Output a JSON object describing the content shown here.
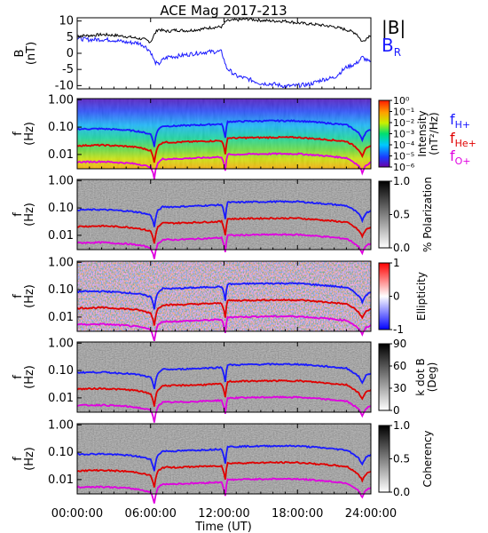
{
  "title": "ACE Mag 2017-213",
  "time_axis": {
    "ticks": [
      "00:00:00",
      "06:00:00",
      "12:00:00",
      "18:00:00",
      "24:00:00"
    ],
    "label": "Time (UT)"
  },
  "legend": {
    "B_total": "|B|",
    "B_R_main": "B",
    "B_R_sub": "R",
    "fH_main": "f",
    "fH_sub": "H+",
    "fHe_main": "f",
    "fHe_sub": "He+",
    "fO_main": "f",
    "fO_sub": "O+"
  },
  "colors": {
    "B_total": "#000000",
    "B_R": "#1a1aff",
    "fH": "#1a1aff",
    "fHe": "#e00000",
    "fO": "#e000e0"
  },
  "panels": {
    "b": {
      "ylabel": "B",
      "yunit": "(nT)",
      "ylim": [
        -11,
        11
      ],
      "yticks": [
        "10",
        "5",
        "0",
        "-5",
        "-10"
      ]
    },
    "spec": {
      "ylabel": "f",
      "yunit": "(Hz)",
      "yticks": [
        "1.00",
        "0.10",
        "0.01"
      ],
      "cbar_label_main": "Intensity",
      "cbar_label_unit": "(nT²/Hz)",
      "cbar_ticks": [
        "10⁰",
        "10⁻¹",
        "10⁻²",
        "10⁻³",
        "10⁻⁴",
        "10⁻⁵",
        "10⁻⁶"
      ]
    },
    "pol": {
      "ylabel": "f",
      "yunit": "(Hz)",
      "yticks": [
        "1.00",
        "0.10",
        "0.01"
      ],
      "cbar_label": "% Polarization",
      "cbar_ticks": [
        "1.0",
        "0.5",
        "0.0"
      ]
    },
    "ell": {
      "ylabel": "f",
      "yunit": "(Hz)",
      "yticks": [
        "1.00",
        "0.10",
        "0.01"
      ],
      "cbar_label": "Ellipticity",
      "cbar_ticks": [
        "1",
        "0",
        "-1"
      ]
    },
    "kdb": {
      "ylabel": "f",
      "yunit": "(Hz)",
      "yticks": [
        "1.00",
        "0.10",
        "0.01"
      ],
      "cbar_label_main": "k dot B",
      "cbar_label_unit": "(Deg)",
      "cbar_ticks": [
        "90",
        "60",
        "30",
        "0"
      ]
    },
    "coh": {
      "ylabel": "f",
      "yunit": "(Hz)",
      "yticks": [
        "1.00",
        "0.10",
        "0.01"
      ],
      "cbar_label": "Coherency",
      "cbar_ticks": [
        "1.0",
        "0.5",
        "0.0"
      ]
    }
  },
  "chart_data": [
    {
      "type": "line",
      "panel": "b",
      "ylabel": "B (nT)",
      "ylim": [
        -11,
        11
      ],
      "x_hours": [
        0,
        1,
        2,
        3,
        4,
        5,
        5.5,
        6,
        6.3,
        6.6,
        7,
        7.5,
        8,
        9,
        10,
        11,
        11.8,
        12.2,
        13,
        14,
        15,
        16,
        17,
        18,
        19,
        20,
        21,
        22,
        22.8,
        23.3,
        23.8,
        24
      ],
      "series": [
        {
          "name": "|B|",
          "values": [
            5.5,
            5.5,
            5.8,
            5.6,
            5.2,
            4.6,
            4.3,
            3.5,
            5.8,
            7.5,
            7.0,
            6.8,
            7.2,
            7.0,
            7.4,
            8.0,
            8.2,
            10.0,
            10.3,
            10.6,
            10.2,
            10.0,
            10.0,
            9.4,
            9.1,
            8.7,
            8.2,
            7.3,
            6.2,
            3.5,
            5.2,
            5.8
          ]
        },
        {
          "name": "B_R",
          "values": [
            4.6,
            4.2,
            4.3,
            4.1,
            3.4,
            3.2,
            2.3,
            0.5,
            -2.5,
            -3.5,
            -2.0,
            -1.0,
            -1.0,
            -0.4,
            0.2,
            0.5,
            0.5,
            -4.5,
            -7.0,
            -8.0,
            -9.3,
            -9.5,
            -10.2,
            -10.0,
            -9.6,
            -8.2,
            -7.5,
            -4.3,
            -3.2,
            -1.2,
            -2.5,
            -3.0
          ]
        }
      ]
    },
    {
      "type": "heatmap",
      "panel": "spec",
      "ylabel": "f (Hz)",
      "yscale": "log",
      "ylim": [
        0.003,
        1.1
      ],
      "xlim": [
        0,
        24
      ],
      "colorbar": {
        "label": "Intensity (nT²/Hz)",
        "scale": "log",
        "range": [
          1e-06,
          1
        ]
      },
      "overlay_x_hours": [
        0,
        2,
        4,
        5,
        6,
        6.3,
        6.6,
        7,
        8,
        10,
        11.8,
        12.1,
        12.3,
        13,
        14,
        16,
        18,
        20,
        22,
        23,
        23.3,
        23.6,
        24
      ],
      "series": [
        {
          "name": "fH+",
          "values": [
            0.085,
            0.087,
            0.078,
            0.07,
            0.055,
            0.02,
            0.08,
            0.11,
            0.11,
            0.12,
            0.13,
            0.04,
            0.16,
            0.16,
            0.165,
            0.17,
            0.17,
            0.145,
            0.12,
            0.06,
            0.035,
            0.065,
            0.08
          ]
        },
        {
          "name": "fHe+",
          "values": [
            0.021,
            0.022,
            0.02,
            0.018,
            0.014,
            0.005,
            0.02,
            0.028,
            0.028,
            0.03,
            0.032,
            0.01,
            0.04,
            0.04,
            0.041,
            0.042,
            0.042,
            0.036,
            0.03,
            0.015,
            0.009,
            0.016,
            0.02
          ]
        },
        {
          "name": "fO+",
          "values": [
            0.0053,
            0.0055,
            0.0049,
            0.0044,
            0.0035,
            0.0013,
            0.005,
            0.0069,
            0.0069,
            0.0075,
            0.0081,
            0.0025,
            0.01,
            0.01,
            0.0103,
            0.0106,
            0.0106,
            0.0091,
            0.0075,
            0.0038,
            0.0022,
            0.0041,
            0.005
          ]
        }
      ]
    },
    {
      "type": "heatmap",
      "panel": "pol",
      "ylabel": "f (Hz)",
      "yscale": "log",
      "ylim": [
        0.003,
        1.1
      ],
      "colorbar": {
        "label": "% Polarization",
        "range": [
          0,
          1
        ]
      }
    },
    {
      "type": "heatmap",
      "panel": "ell",
      "ylabel": "f (Hz)",
      "yscale": "log",
      "ylim": [
        0.003,
        1.1
      ],
      "colorbar": {
        "label": "Ellipticity",
        "range": [
          -1,
          1
        ]
      }
    },
    {
      "type": "heatmap",
      "panel": "kdb",
      "ylabel": "f (Hz)",
      "yscale": "log",
      "ylim": [
        0.003,
        1.1
      ],
      "colorbar": {
        "label": "k dot B (Deg)",
        "range": [
          0,
          90
        ]
      }
    },
    {
      "type": "heatmap",
      "panel": "coh",
      "ylabel": "f (Hz)",
      "yscale": "log",
      "ylim": [
        0.003,
        1.1
      ],
      "colorbar": {
        "label": "Coherency",
        "range": [
          0,
          1
        ]
      }
    }
  ]
}
